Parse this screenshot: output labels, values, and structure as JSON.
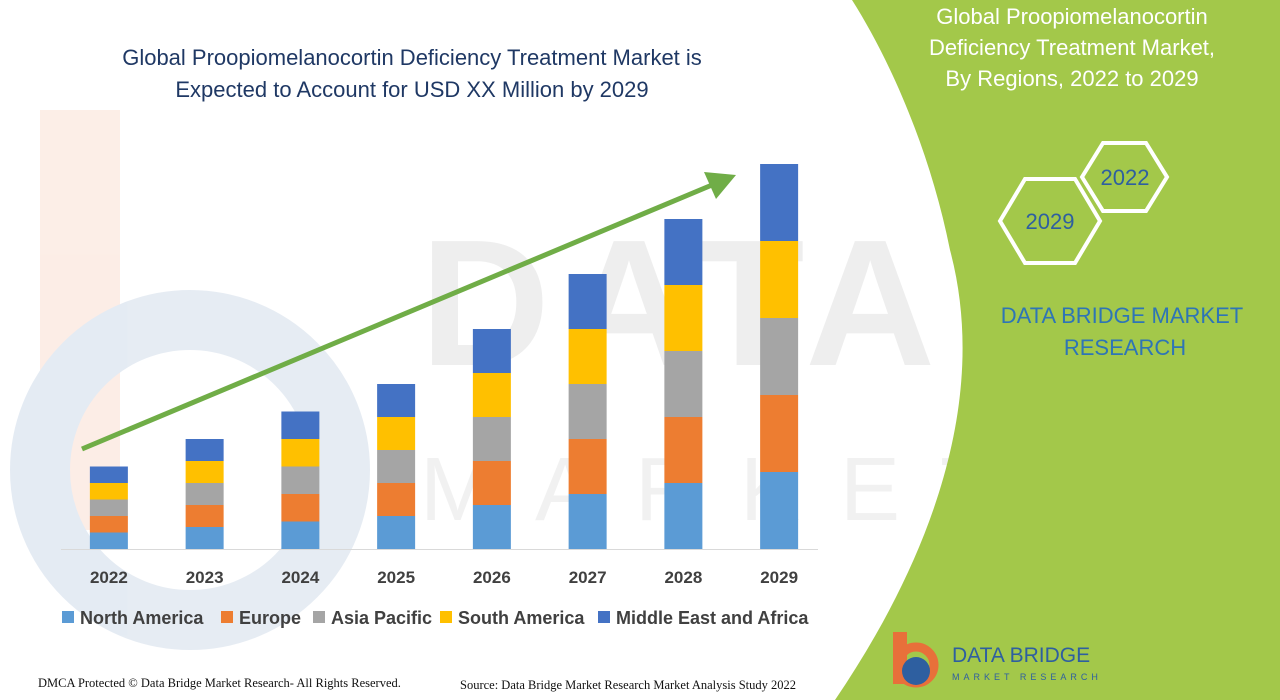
{
  "colors": {
    "panel_green": "#a3c84a",
    "panel_text": "#ffffff",
    "hex_label": "#2e5fa0",
    "brand_text": "#2e75b6",
    "title_text": "#1f3864",
    "arrow": "#70ad47",
    "watermark": "#c9c9c9"
  },
  "header": {
    "title_line1": "Global Proopiomelanocortin Deficiency Treatment Market is",
    "title_line2": "Expected to Account for USD XX Million by 2029"
  },
  "panel": {
    "title_line1": "Global Proopiomelanocortin",
    "title_line2": "Deficiency Treatment Market,",
    "title_line3": "By Regions, 2022 to 2029",
    "hex_start": "2022",
    "hex_end": "2029",
    "brand_line1": "DATA BRIDGE MARKET",
    "brand_line2": "RESEARCH"
  },
  "watermark": {
    "line1": "DATA BRIDGE",
    "line2": "MARKET RESEARCH"
  },
  "logo": {
    "name": "DATA BRIDGE",
    "tagline": "MARKET RESEARCH"
  },
  "footer": {
    "left": "DMCA Protected © Data Bridge Market Research- All Rights Reserved.",
    "right": "Source: Data Bridge Market Research Market Analysis Study 2022"
  },
  "chart_data": {
    "type": "bar",
    "stacked": true,
    "title": "Global Proopiomelanocortin Deficiency Treatment Market is Expected to Account for USD XX Million by 2029",
    "categories": [
      "2022",
      "2023",
      "2024",
      "2025",
      "2026",
      "2027",
      "2028",
      "2029"
    ],
    "series": [
      {
        "name": "North America",
        "color": "#5b9bd5",
        "values": [
          1.5,
          2.0,
          2.5,
          3.0,
          4.0,
          5.0,
          6.0,
          7.0
        ]
      },
      {
        "name": "Europe",
        "color": "#ed7d31",
        "values": [
          1.5,
          2.0,
          2.5,
          3.0,
          4.0,
          5.0,
          6.0,
          7.0
        ]
      },
      {
        "name": "Asia Pacific",
        "color": "#a5a5a5",
        "values": [
          1.5,
          2.0,
          2.5,
          3.0,
          4.0,
          5.0,
          6.0,
          7.0
        ]
      },
      {
        "name": "South America",
        "color": "#ffc000",
        "values": [
          1.5,
          2.0,
          2.5,
          3.0,
          4.0,
          5.0,
          6.0,
          7.0
        ]
      },
      {
        "name": "Middle East and Africa",
        "color": "#4472c4",
        "values": [
          1.5,
          2.0,
          2.5,
          3.0,
          4.0,
          5.0,
          6.0,
          7.0
        ]
      }
    ],
    "xlabel": "",
    "ylabel": "",
    "ylim": [
      0,
      35
    ],
    "y_axis_visible": false,
    "grid": false,
    "legend_position": "bottom",
    "annotation": "upward trend arrow"
  }
}
